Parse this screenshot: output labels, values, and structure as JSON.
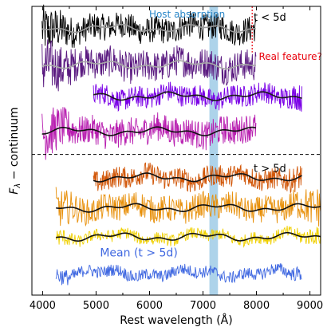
{
  "chart_data": {
    "type": "line",
    "xlabel": "Rest wavelength (Å)",
    "ylabel": "F_λ − continuum",
    "ylabel_main": "F",
    "ylabel_sub": "λ",
    "ylabel_rest": " − continuum",
    "xlim": [
      3800,
      9200
    ],
    "xticks": [
      4000,
      5000,
      6000,
      7000,
      8000,
      9000
    ],
    "xtick_labels": [
      "4000",
      "5000",
      "6000",
      "7000",
      "8000",
      "9000"
    ],
    "y_ticks_shown": false,
    "grid": false,
    "divider": {
      "style": "dashed",
      "color": "#000000"
    },
    "host_absorption_band": {
      "x_range": [
        7120,
        7280
      ],
      "label": "Host absorption",
      "color": "#9fcbe6",
      "label_color": "#2a87c8"
    },
    "real_feature_marker": {
      "x": 7920,
      "label": "Real feature?",
      "color": "#e8000b",
      "style": "dotted"
    },
    "group_labels": [
      {
        "text": "t < 5d",
        "position": "upper-right"
      },
      {
        "text": "t > 5d",
        "position": "middle-right"
      }
    ],
    "mean_label": {
      "text": "Mean (t > 5d)",
      "color": "#4169e1"
    },
    "series": [
      {
        "group": "t < 5d",
        "color": "#000000",
        "smooth_color": "#9a9a9a",
        "x_range": [
          3990,
          7990
        ],
        "offset": 8.6,
        "noise": 0.55
      },
      {
        "group": "t < 5d",
        "color": "#5a1a80",
        "smooth_color": "#a8a8a8",
        "x_range": [
          3990,
          7990
        ],
        "offset": 7.1,
        "noise": 0.65
      },
      {
        "group": "t < 5d",
        "color": "#7a00e6",
        "smooth_color": "#1a1a1a",
        "x_range": [
          4950,
          8850
        ],
        "offset": 5.8,
        "noise": 0.45
      },
      {
        "group": "t < 5d",
        "color": "#b81fb0",
        "smooth_color": "#111111",
        "x_range": [
          3990,
          7990
        ],
        "offset": 4.35,
        "noise": 0.6
      },
      {
        "group": "t > 5d",
        "color": "#d2580a",
        "smooth_color": "#111111",
        "x_range": [
          4950,
          8850
        ],
        "offset": 2.45,
        "noise": 0.45
      },
      {
        "group": "t > 5d",
        "color": "#e8900a",
        "smooth_color": "#111111",
        "x_range": [
          4250,
          9200
        ],
        "offset": 1.2,
        "noise": 0.55
      },
      {
        "group": "t > 5d",
        "color": "#f0d000",
        "smooth_color": "#111111",
        "x_range": [
          4250,
          9200
        ],
        "offset": 0.0,
        "noise": 0.25
      },
      {
        "group": "mean",
        "color": "#4169e1",
        "smooth_color": null,
        "x_range": [
          4250,
          8850
        ],
        "offset": -1.5,
        "noise": 0.25
      }
    ]
  }
}
